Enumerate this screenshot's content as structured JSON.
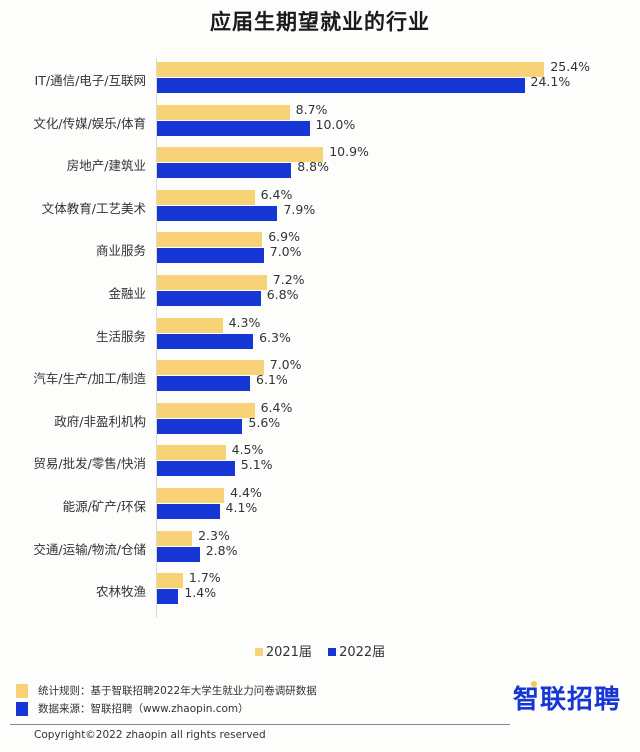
{
  "title": "应届生期望就业的行业",
  "chart_data": {
    "type": "bar",
    "orientation": "horizontal",
    "title": "应届生期望就业的行业",
    "xlabel": "",
    "ylabel": "",
    "unit": "%",
    "categories": [
      "IT/通信/电子/互联网",
      "文化/传媒/娱乐/体育",
      "房地产/建筑业",
      "文体教育/工艺美术",
      "商业服务",
      "金融业",
      "生活服务",
      "汽车/生产/加工/制造",
      "政府/非盈利机构",
      "贸易/批发/零售/快消",
      "能源/矿产/环保",
      "交通/运输/物流/仓储",
      "农林牧渔"
    ],
    "series": [
      {
        "name": "2021届",
        "color": "#f7d276",
        "values": [
          25.4,
          8.7,
          10.9,
          6.4,
          6.9,
          7.2,
          4.3,
          7.0,
          6.4,
          4.5,
          4.4,
          2.3,
          1.7
        ]
      },
      {
        "name": "2022届",
        "color": "#1637d6",
        "values": [
          24.1,
          10.0,
          8.8,
          7.9,
          7.0,
          6.8,
          6.3,
          6.1,
          5.6,
          5.1,
          4.1,
          2.8,
          1.4
        ]
      }
    ],
    "value_labels": {
      "2021": [
        "25.4%",
        "8.7%",
        "10.9%",
        "6.4%",
        "6.9%",
        "7.2%",
        "4.3%",
        "7.0%",
        "6.4%",
        "4.5%",
        "4.4%",
        "2.3%",
        "1.7%"
      ],
      "2022": [
        "24.1%",
        "10.0%",
        "8.8%",
        "7.9%",
        "7.0%",
        "6.8%",
        "6.3%",
        "6.1%",
        "5.6%",
        "5.1%",
        "4.1%",
        "2.8%",
        "1.4%"
      ]
    },
    "grid": false,
    "legend_position": "bottom"
  },
  "legend": [
    "2021届",
    "2022届"
  ],
  "notes": {
    "rule": "统计规则：基于智联招聘2022年大学生就业力问卷调研数据",
    "source": "数据来源：智联招聘（www.zhaopin.com）"
  },
  "logo": "智联招聘",
  "copyright": "Copyright©2022 zhaopin all rights reserved"
}
